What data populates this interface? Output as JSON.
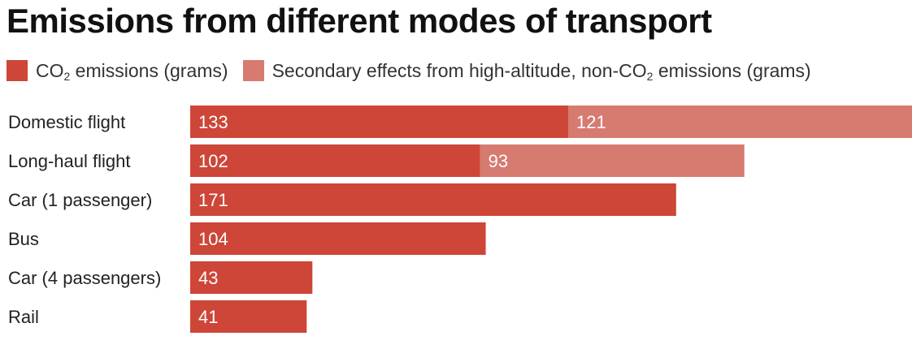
{
  "chart_data": {
    "type": "bar",
    "orientation": "horizontal",
    "stacked": true,
    "title": "Emissions from different modes of transport",
    "categories": [
      "Domestic flight",
      "Long-haul flight",
      "Car (1 passenger)",
      "Bus",
      "Car (4 passengers)",
      "Rail"
    ],
    "series": [
      {
        "name": "CO₂ emissions (grams)",
        "name_prefix": "CO",
        "name_sub": "2",
        "name_suffix": " emissions (grams)",
        "color": "#cd4637",
        "values": [
          133,
          102,
          171,
          104,
          43,
          41
        ]
      },
      {
        "name": "Secondary effects from high-altitude, non-CO₂ emissions (grams)",
        "name_prefix": "Secondary effects from high-altitude, non-CO",
        "name_sub": "2",
        "name_suffix": " emissions (grams)",
        "color": "#d77a70",
        "values": [
          121,
          93,
          null,
          null,
          null,
          null
        ]
      }
    ],
    "xlim": [
      0,
      254
    ],
    "grid": false,
    "legend_position": "top-left"
  }
}
